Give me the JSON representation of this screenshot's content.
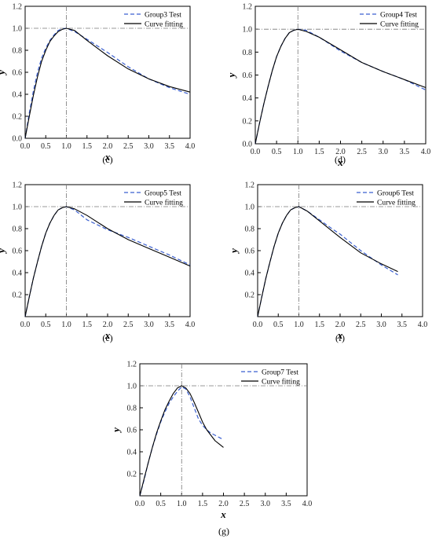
{
  "figure": {
    "panels": [
      {
        "label": "(c)",
        "test_name": "Group3 Test",
        "fit_name": "Curve fitting"
      },
      {
        "label": "(d)",
        "test_name": "Group4 Test",
        "fit_name": "Curve fitting"
      },
      {
        "label": "(e)",
        "test_name": "Group5 Test",
        "fit_name": "Curve fitting"
      },
      {
        "label": "(f)",
        "test_name": "Group6 Test",
        "fit_name": "Curve fitting"
      },
      {
        "label": "(g)",
        "test_name": "Group7 Test",
        "fit_name": "Curve fitting"
      }
    ]
  },
  "colors": {
    "test_series": "#3a5fd0",
    "fit_series": "#000000",
    "reference_lines": "#777777"
  },
  "chart_data": [
    {
      "type": "line",
      "panel": "(c)",
      "xlabel": "x",
      "ylabel": "y",
      "xlim": [
        0.0,
        4.0
      ],
      "ylim": [
        0.0,
        1.2
      ],
      "xticks": [
        "0.0",
        "0.5",
        "1.0",
        "1.5",
        "2.0",
        "2.5",
        "3.0",
        "3.5",
        "4.0"
      ],
      "yticks": [
        "0.0",
        "0.2",
        "0.4",
        "0.6",
        "0.8",
        "1.0",
        "1.2"
      ],
      "reference_lines": {
        "x": 1.0,
        "y": 1.0
      },
      "legend_position": "top-right",
      "series": [
        {
          "name": "Group3 Test",
          "style": "dashed",
          "x": [
            0.0,
            0.1,
            0.2,
            0.3,
            0.4,
            0.5,
            0.6,
            0.7,
            0.8,
            0.9,
            1.0,
            1.2,
            1.5,
            2.0,
            2.5,
            3.0,
            3.5,
            4.0
          ],
          "y": [
            0.0,
            0.23,
            0.43,
            0.6,
            0.73,
            0.82,
            0.89,
            0.94,
            0.98,
            0.995,
            1.0,
            0.97,
            0.9,
            0.78,
            0.65,
            0.54,
            0.46,
            0.4
          ]
        },
        {
          "name": "Curve fitting",
          "style": "solid",
          "x": [
            0.0,
            0.1,
            0.2,
            0.3,
            0.4,
            0.5,
            0.6,
            0.7,
            0.8,
            0.9,
            1.0,
            1.2,
            1.5,
            2.0,
            2.5,
            3.0,
            3.5,
            4.0
          ],
          "y": [
            0.0,
            0.2,
            0.39,
            0.56,
            0.7,
            0.8,
            0.88,
            0.93,
            0.97,
            0.99,
            1.0,
            0.98,
            0.89,
            0.75,
            0.63,
            0.54,
            0.47,
            0.42
          ]
        }
      ]
    },
    {
      "type": "line",
      "panel": "(d)",
      "xlabel": "x",
      "ylabel": "y",
      "xlim": [
        0.0,
        4.0
      ],
      "ylim": [
        0.0,
        1.2
      ],
      "xticks": [
        "0.0",
        "0.5",
        "1.0",
        "1.5",
        "2.0",
        "2.5",
        "3.0",
        "3.5",
        "4.0"
      ],
      "yticks": [
        "0.0",
        "0.2",
        "0.4",
        "0.6",
        "0.8",
        "1.0",
        "1.2"
      ],
      "reference_lines": {
        "x": 1.0,
        "y": 1.0
      },
      "legend_position": "top-right",
      "series": [
        {
          "name": "Group4 Test",
          "style": "dashed",
          "x": [
            0.0,
            0.1,
            0.2,
            0.3,
            0.4,
            0.5,
            0.6,
            0.7,
            0.8,
            0.9,
            1.0,
            1.2,
            1.5,
            2.0,
            2.5,
            3.0,
            3.5,
            4.0
          ],
          "y": [
            0.0,
            0.18,
            0.35,
            0.5,
            0.64,
            0.76,
            0.85,
            0.92,
            0.97,
            0.99,
            1.0,
            0.99,
            0.93,
            0.81,
            0.71,
            0.63,
            0.56,
            0.47
          ]
        },
        {
          "name": "Curve fitting",
          "style": "solid",
          "x": [
            0.0,
            0.1,
            0.2,
            0.3,
            0.4,
            0.5,
            0.6,
            0.7,
            0.8,
            0.9,
            1.0,
            1.2,
            1.5,
            2.0,
            2.5,
            3.0,
            3.5,
            4.0
          ],
          "y": [
            0.0,
            0.18,
            0.35,
            0.5,
            0.64,
            0.76,
            0.85,
            0.92,
            0.97,
            0.99,
            1.0,
            0.98,
            0.93,
            0.82,
            0.71,
            0.63,
            0.56,
            0.49
          ]
        }
      ]
    },
    {
      "type": "line",
      "panel": "(e)",
      "xlabel": "x",
      "ylabel": "y",
      "xlim": [
        0.0,
        4.0
      ],
      "ylim": [
        0.0,
        1.2
      ],
      "xticks": [
        "0.0",
        "0.5",
        "1.0",
        "1.5",
        "2.0",
        "2.5",
        "3.0",
        "3.5",
        "4.0"
      ],
      "yticks": [
        "0.2",
        "0.4",
        "0.6",
        "0.8",
        "1.0",
        "1.2"
      ],
      "reference_lines": {
        "x": 1.0,
        "y": 1.0
      },
      "legend_position": "top-right",
      "series": [
        {
          "name": "Group5 Test",
          "style": "dashed",
          "x": [
            0.0,
            0.1,
            0.2,
            0.3,
            0.4,
            0.5,
            0.6,
            0.7,
            0.8,
            0.9,
            1.0,
            1.2,
            1.5,
            2.0,
            2.5,
            3.0,
            3.5,
            4.0
          ],
          "y": [
            0.0,
            0.18,
            0.35,
            0.5,
            0.64,
            0.76,
            0.85,
            0.92,
            0.97,
            0.99,
            1.0,
            0.97,
            0.88,
            0.79,
            0.72,
            0.64,
            0.56,
            0.47
          ]
        },
        {
          "name": "Curve fitting",
          "style": "solid",
          "x": [
            0.0,
            0.1,
            0.2,
            0.3,
            0.4,
            0.5,
            0.6,
            0.7,
            0.8,
            0.9,
            1.0,
            1.2,
            1.5,
            2.0,
            2.5,
            3.0,
            3.5,
            4.0
          ],
          "y": [
            0.0,
            0.18,
            0.35,
            0.5,
            0.64,
            0.76,
            0.85,
            0.92,
            0.97,
            0.99,
            1.0,
            0.98,
            0.92,
            0.8,
            0.7,
            0.62,
            0.54,
            0.46
          ]
        }
      ]
    },
    {
      "type": "line",
      "panel": "(f)",
      "xlabel": "x",
      "ylabel": "y",
      "xlim": [
        0.0,
        4.0
      ],
      "ylim": [
        0.0,
        1.2
      ],
      "xticks": [
        "0.0",
        "0.5",
        "1.0",
        "1.5",
        "2.0",
        "2.5",
        "3.0",
        "3.5",
        "4.0"
      ],
      "yticks": [
        "0.2",
        "0.4",
        "0.6",
        "0.8",
        "1.0",
        "1.2"
      ],
      "reference_lines": {
        "x": 1.0,
        "y": 1.0
      },
      "legend_position": "top-right",
      "series": [
        {
          "name": "Group6 Test",
          "style": "dashed",
          "x": [
            0.0,
            0.1,
            0.2,
            0.3,
            0.4,
            0.5,
            0.6,
            0.7,
            0.8,
            0.9,
            1.0,
            1.2,
            1.5,
            1.8,
            2.0,
            2.5,
            3.0,
            3.4
          ],
          "y": [
            0.0,
            0.18,
            0.35,
            0.5,
            0.64,
            0.76,
            0.85,
            0.92,
            0.97,
            0.99,
            1.0,
            0.96,
            0.88,
            0.8,
            0.75,
            0.6,
            0.47,
            0.38
          ]
        },
        {
          "name": "Curve fitting",
          "style": "solid",
          "x": [
            0.0,
            0.1,
            0.2,
            0.3,
            0.4,
            0.5,
            0.6,
            0.7,
            0.8,
            0.9,
            1.0,
            1.2,
            1.5,
            1.8,
            2.0,
            2.5,
            3.0,
            3.4
          ],
          "y": [
            0.0,
            0.18,
            0.35,
            0.5,
            0.64,
            0.76,
            0.85,
            0.92,
            0.97,
            0.99,
            1.0,
            0.96,
            0.87,
            0.78,
            0.72,
            0.58,
            0.48,
            0.41
          ]
        }
      ]
    },
    {
      "type": "line",
      "panel": "(g)",
      "xlabel": "x",
      "ylabel": "y",
      "xlim": [
        0.0,
        4.0
      ],
      "ylim": [
        0.0,
        1.2
      ],
      "xticks": [
        "0.0",
        "0.5",
        "1.0",
        "1.5",
        "2.0",
        "2.5",
        "3.0",
        "3.5",
        "4.0"
      ],
      "yticks": [
        "0.2",
        "0.4",
        "0.6",
        "0.8",
        "1.0",
        "1.2"
      ],
      "reference_lines": {
        "x": 1.0,
        "y": 1.0
      },
      "legend_position": "top-right",
      "series": [
        {
          "name": "Group7 Test",
          "style": "dashed",
          "x": [
            0.0,
            0.1,
            0.2,
            0.3,
            0.4,
            0.5,
            0.6,
            0.7,
            0.8,
            0.9,
            1.0,
            1.1,
            1.2,
            1.3,
            1.4,
            1.5,
            1.6,
            1.7,
            1.8,
            1.9,
            2.0
          ],
          "y": [
            0.0,
            0.14,
            0.3,
            0.44,
            0.56,
            0.67,
            0.76,
            0.84,
            0.9,
            0.95,
            0.99,
            0.97,
            0.9,
            0.8,
            0.7,
            0.64,
            0.6,
            0.57,
            0.55,
            0.53,
            0.51
          ]
        },
        {
          "name": "Curve fitting",
          "style": "solid",
          "x": [
            0.0,
            0.1,
            0.2,
            0.3,
            0.4,
            0.5,
            0.6,
            0.7,
            0.8,
            0.9,
            1.0,
            1.1,
            1.2,
            1.3,
            1.4,
            1.5,
            1.6,
            1.7,
            1.8,
            1.9,
            2.0
          ],
          "y": [
            0.0,
            0.15,
            0.3,
            0.44,
            0.57,
            0.68,
            0.78,
            0.86,
            0.93,
            0.98,
            1.0,
            0.98,
            0.93,
            0.85,
            0.76,
            0.67,
            0.6,
            0.55,
            0.5,
            0.47,
            0.44
          ]
        }
      ]
    }
  ]
}
